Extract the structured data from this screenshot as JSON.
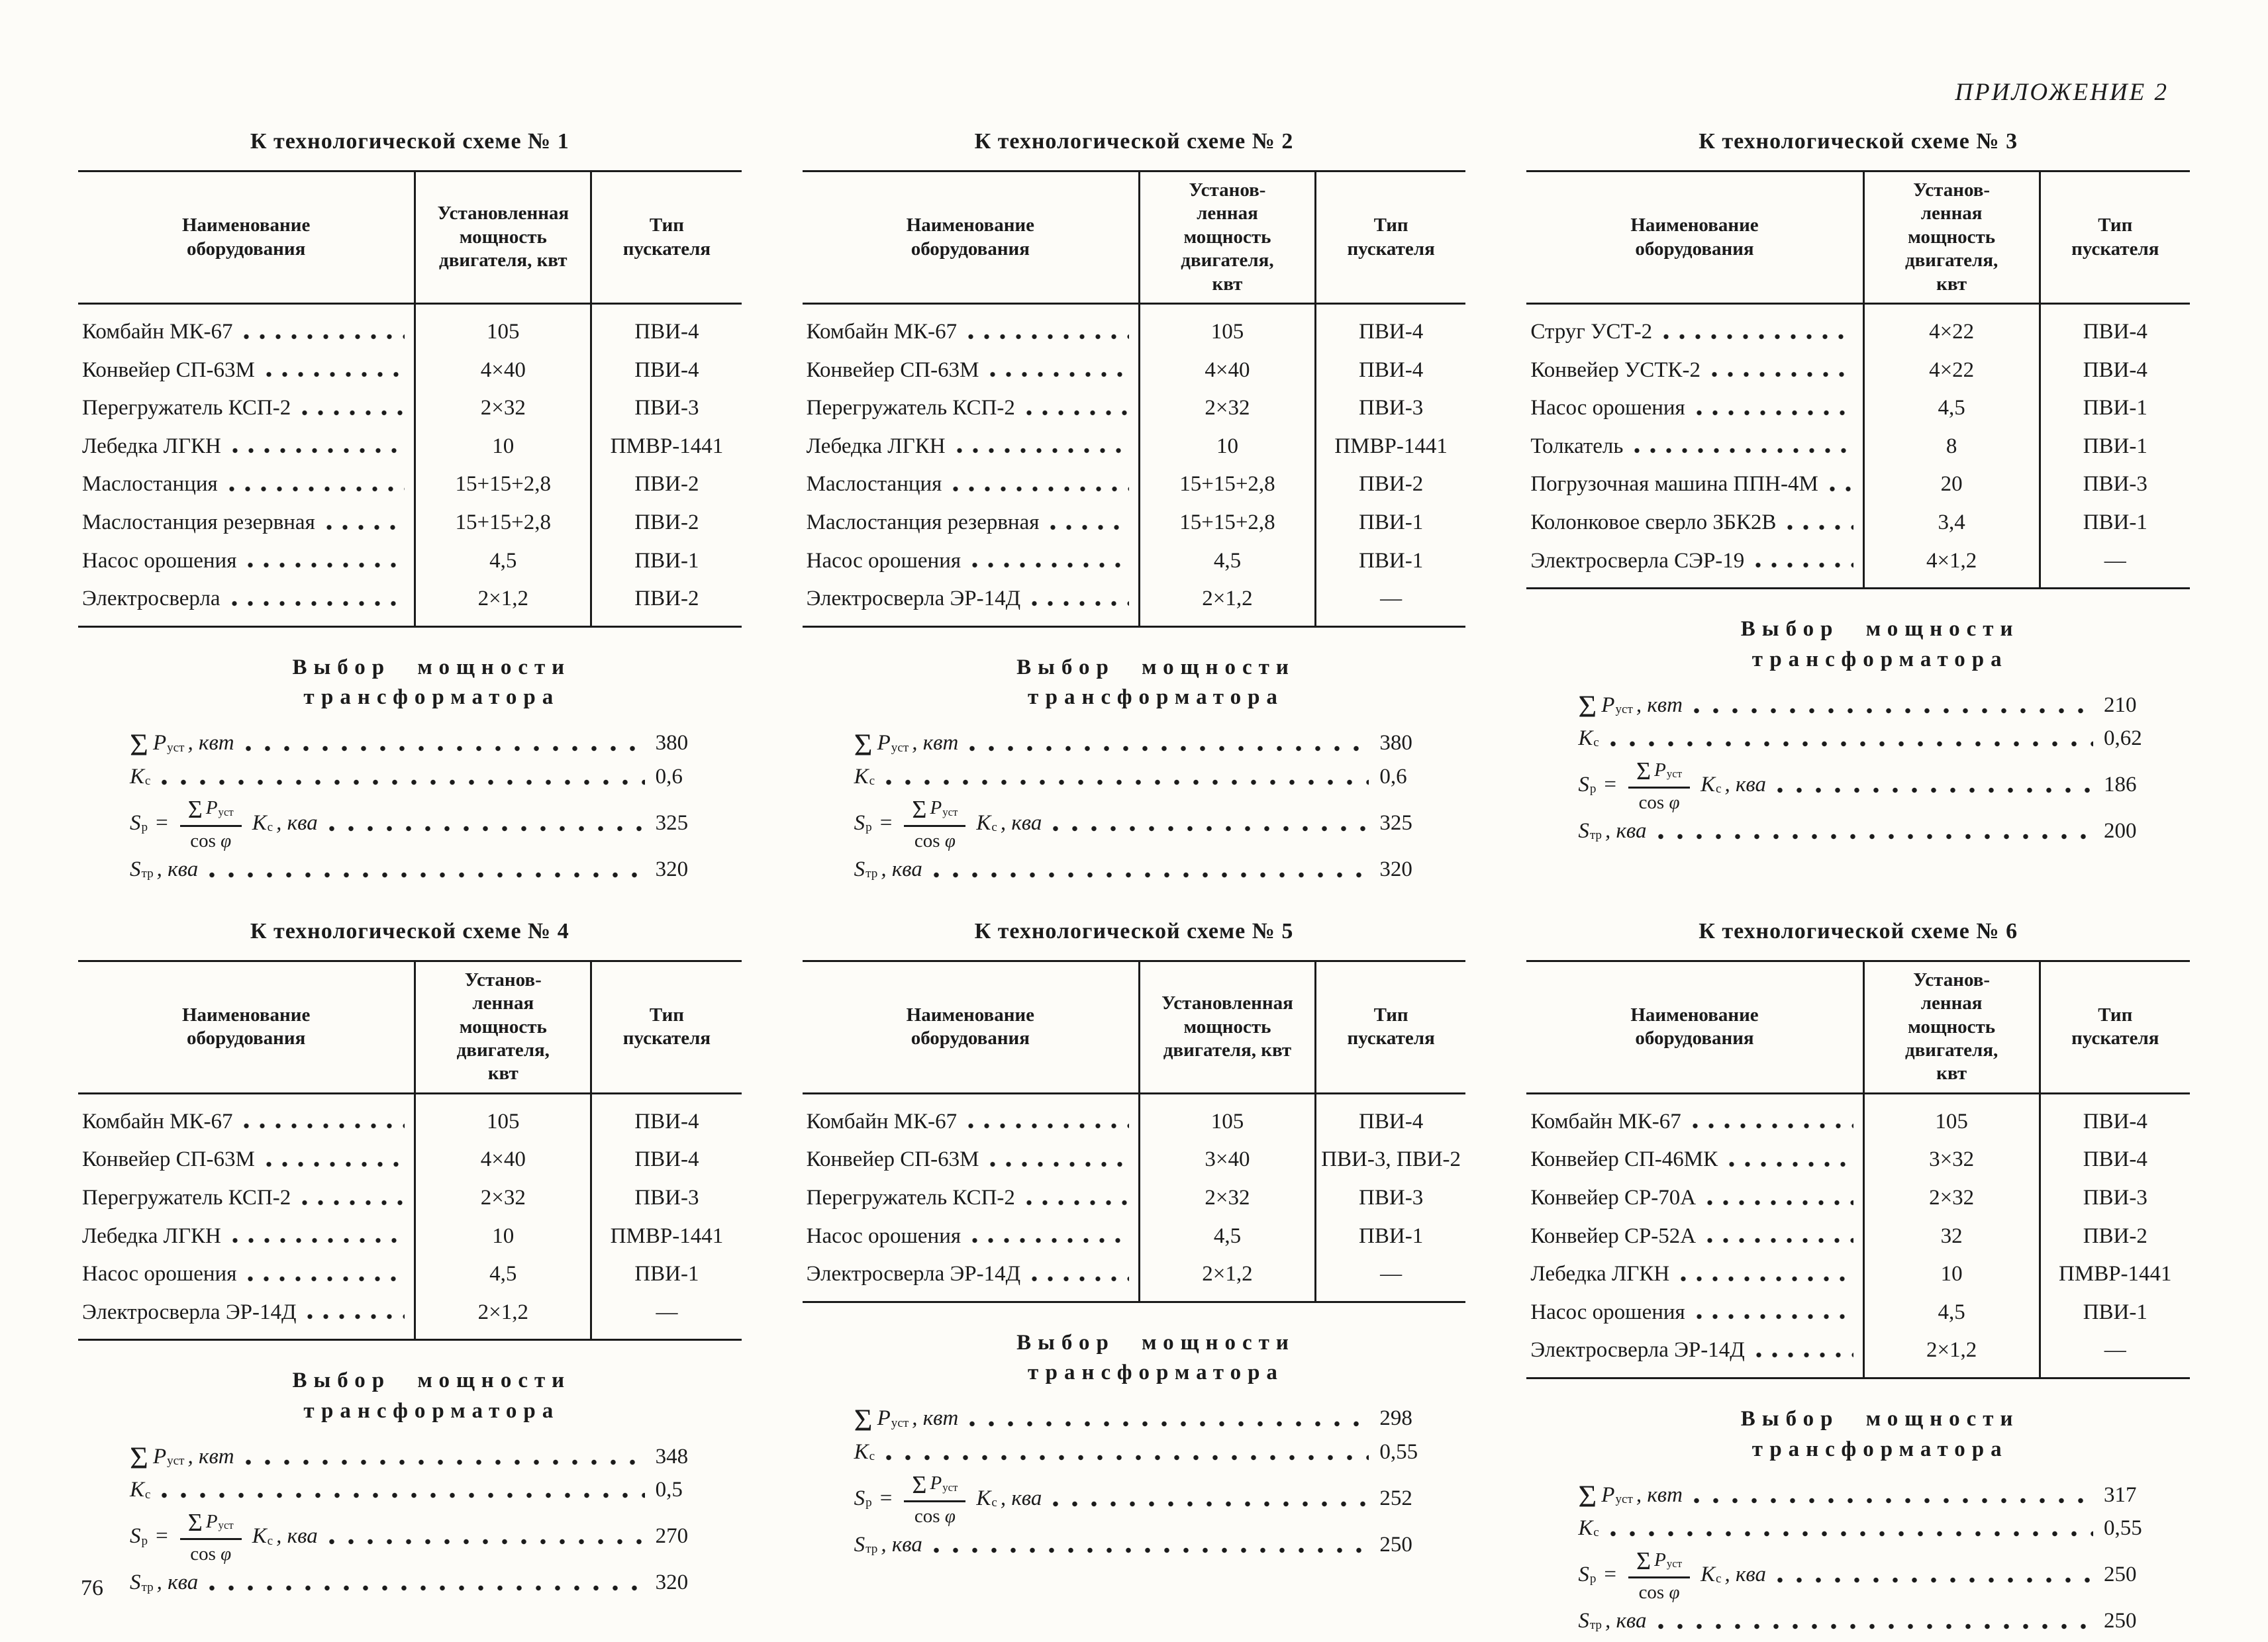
{
  "page": {
    "appendix_label": "ПРИЛОЖЕНИЕ 2",
    "page_number": "76"
  },
  "math": {
    "sigma": "Σ",
    "p_var": "P",
    "p_sub": "уст",
    "kvt_unit": ", квт",
    "kc_var": "К",
    "kc_sub": "с",
    "sp_var": "S",
    "sp_sub": "р",
    "equals": "=",
    "cos": "cos",
    "phi": " φ",
    "kva_unit": ", ква",
    "str_var": "S",
    "str_sub": "тр"
  },
  "blocks": [
    {
      "title": "К технологической схеме № 1",
      "headers": {
        "name": "Наименование\nоборудования",
        "power": "Установленная\nмощность\nдвигателя, квт",
        "starter": "Тип\nпускателя"
      },
      "rows": [
        {
          "name": "Комбайн МК-67",
          "power": "105",
          "starter": "ПВИ-4"
        },
        {
          "name": "Конвейер СП-63М",
          "power": "4×40",
          "starter": "ПВИ-4"
        },
        {
          "name": "Перегружатель КСП-2",
          "power": "2×32",
          "starter": "ПВИ-3"
        },
        {
          "name": "Лебедка ЛГКН",
          "power": "10",
          "starter": "ПМВР-1441"
        },
        {
          "name": "Маслостанция",
          "power": "15+15+2,8",
          "starter": "ПВИ-2"
        },
        {
          "name": "Маслостанция резервная",
          "power": "15+15+2,8",
          "starter": "ПВИ-2"
        },
        {
          "name": "Насос орошения",
          "power": "4,5",
          "starter": "ПВИ-1"
        },
        {
          "name": "Электросверла",
          "power": "2×1,2",
          "starter": "ПВИ-2"
        }
      ],
      "selection": {
        "title": "Выбор мощности\nтрансформатора",
        "sum": "380",
        "kc": "0,6",
        "sp": "325",
        "str": "320"
      }
    },
    {
      "title": "К технологической схеме № 2",
      "headers": {
        "name": "Наименование\nоборудования",
        "power": "Установ-\nленная\nмощность\nдвигателя,\nквт",
        "starter": "Тип\nпускателя"
      },
      "rows": [
        {
          "name": "Комбайн МК-67",
          "power": "105",
          "starter": "ПВИ-4"
        },
        {
          "name": "Конвейер СП-63М",
          "power": "4×40",
          "starter": "ПВИ-4"
        },
        {
          "name": "Перегружатель КСП-2",
          "power": "2×32",
          "starter": "ПВИ-3"
        },
        {
          "name": "Лебедка ЛГКН",
          "power": "10",
          "starter": "ПМВР-1441"
        },
        {
          "name": "Маслостанция",
          "power": "15+15+2,8",
          "starter": "ПВИ-2"
        },
        {
          "name": "Маслостанция резервная",
          "power": "15+15+2,8",
          "starter": "ПВИ-1"
        },
        {
          "name": "Насос орошения",
          "power": "4,5",
          "starter": "ПВИ-1"
        },
        {
          "name": "Электросверла ЭР-14Д",
          "power": "2×1,2",
          "starter": "—"
        }
      ],
      "selection": {
        "title": "Выбор мощности\nтрансформатора",
        "sum": "380",
        "kc": "0,6",
        "sp": "325",
        "str": "320"
      }
    },
    {
      "title": "К технологической схеме № 3",
      "headers": {
        "name": "Наименование\nоборудования",
        "power": "Установ-\nленная\nмощность\nдвигателя,\nквт",
        "starter": "Тип\nпускателя"
      },
      "rows": [
        {
          "name": "Струг УСТ-2",
          "power": "4×22",
          "starter": "ПВИ-4"
        },
        {
          "name": "Конвейер УСТК-2",
          "power": "4×22",
          "starter": "ПВИ-4"
        },
        {
          "name": "Насос орошения",
          "power": "4,5",
          "starter": "ПВИ-1"
        },
        {
          "name": "Толкатель",
          "power": "8",
          "starter": "ПВИ-1"
        },
        {
          "name": "Погрузочная машина ППН-4М",
          "power": "20",
          "starter": "ПВИ-3"
        },
        {
          "name": "Колонковое сверло ЗБК2В",
          "power": "3,4",
          "starter": "ПВИ-1"
        },
        {
          "name": "Электросверла СЭР-19",
          "power": "4×1,2",
          "starter": "—"
        }
      ],
      "selection": {
        "title": "Выбор мощности\nтрансформатора",
        "sum": "210",
        "kc": "0,62",
        "sp": "186",
        "str": "200"
      }
    },
    {
      "title": "К технологической схеме № 4",
      "headers": {
        "name": "Наименование\nоборудования",
        "power": "Установ-\nленная\nмощность\nдвигателя,\nквт",
        "starter": "Тип\nпускателя"
      },
      "rows": [
        {
          "name": "Комбайн МК-67",
          "power": "105",
          "starter": "ПВИ-4"
        },
        {
          "name": "Конвейер СП-63М",
          "power": "4×40",
          "starter": "ПВИ-4"
        },
        {
          "name": "Перегружатель КСП-2",
          "power": "2×32",
          "starter": "ПВИ-3"
        },
        {
          "name": "Лебедка ЛГКН",
          "power": "10",
          "starter": "ПМВР-1441"
        },
        {
          "name": "Насос орошения",
          "power": "4,5",
          "starter": "ПВИ-1"
        },
        {
          "name": "Электросверла ЭР-14Д",
          "power": "2×1,2",
          "starter": "—"
        }
      ],
      "selection": {
        "title": "Выбор мощности\nтрансформатора",
        "sum": "348",
        "kc": "0,5",
        "sp": "270",
        "str": "320"
      }
    },
    {
      "title": "К технологической схеме № 5",
      "headers": {
        "name": "Наименование\nоборудования",
        "power": "Установленная\nмощность\nдвигателя, квт",
        "starter": "Тип\nпускателя"
      },
      "rows": [
        {
          "name": "Комбайн МК-67",
          "power": "105",
          "starter": "ПВИ-4"
        },
        {
          "name": "Конвейер СП-63М",
          "power": "3×40",
          "starter": "ПВИ-3, ПВИ-2"
        },
        {
          "name": "Перегружатель КСП-2",
          "power": "2×32",
          "starter": "ПВИ-3"
        },
        {
          "name": "Насос орошения",
          "power": "4,5",
          "starter": "ПВИ-1"
        },
        {
          "name": "Электросверла ЭР-14Д",
          "power": "2×1,2",
          "starter": "—"
        }
      ],
      "selection": {
        "title": "Выбор мощности\nтрансформатора",
        "sum": "298",
        "kc": "0,55",
        "sp": "252",
        "str": "250"
      }
    },
    {
      "title": "К технологической схеме № 6",
      "headers": {
        "name": "Наименование\nоборудования",
        "power": "Установ-\nленная\nмощность\nдвигателя,\nквт",
        "starter": "Тип\nпускателя"
      },
      "rows": [
        {
          "name": "Комбайн МК-67",
          "power": "105",
          "starter": "ПВИ-4"
        },
        {
          "name": "Конвейер СП-46МК",
          "power": "3×32",
          "starter": "ПВИ-4"
        },
        {
          "name": "Конвейер СР-70А",
          "power": "2×32",
          "starter": "ПВИ-3"
        },
        {
          "name": "Конвейер СР-52А",
          "power": "32",
          "starter": "ПВИ-2"
        },
        {
          "name": "Лебедка ЛГКН",
          "power": "10",
          "starter": "ПМВР-1441"
        },
        {
          "name": "Насос орошения",
          "power": "4,5",
          "starter": "ПВИ-1"
        },
        {
          "name": "Электросверла ЭР-14Д",
          "power": "2×1,2",
          "starter": "—"
        }
      ],
      "selection": {
        "title": "Выбор мощности\nтрансформатора",
        "sum": "317",
        "kc": "0,55",
        "sp": "250",
        "str": "250"
      }
    }
  ]
}
